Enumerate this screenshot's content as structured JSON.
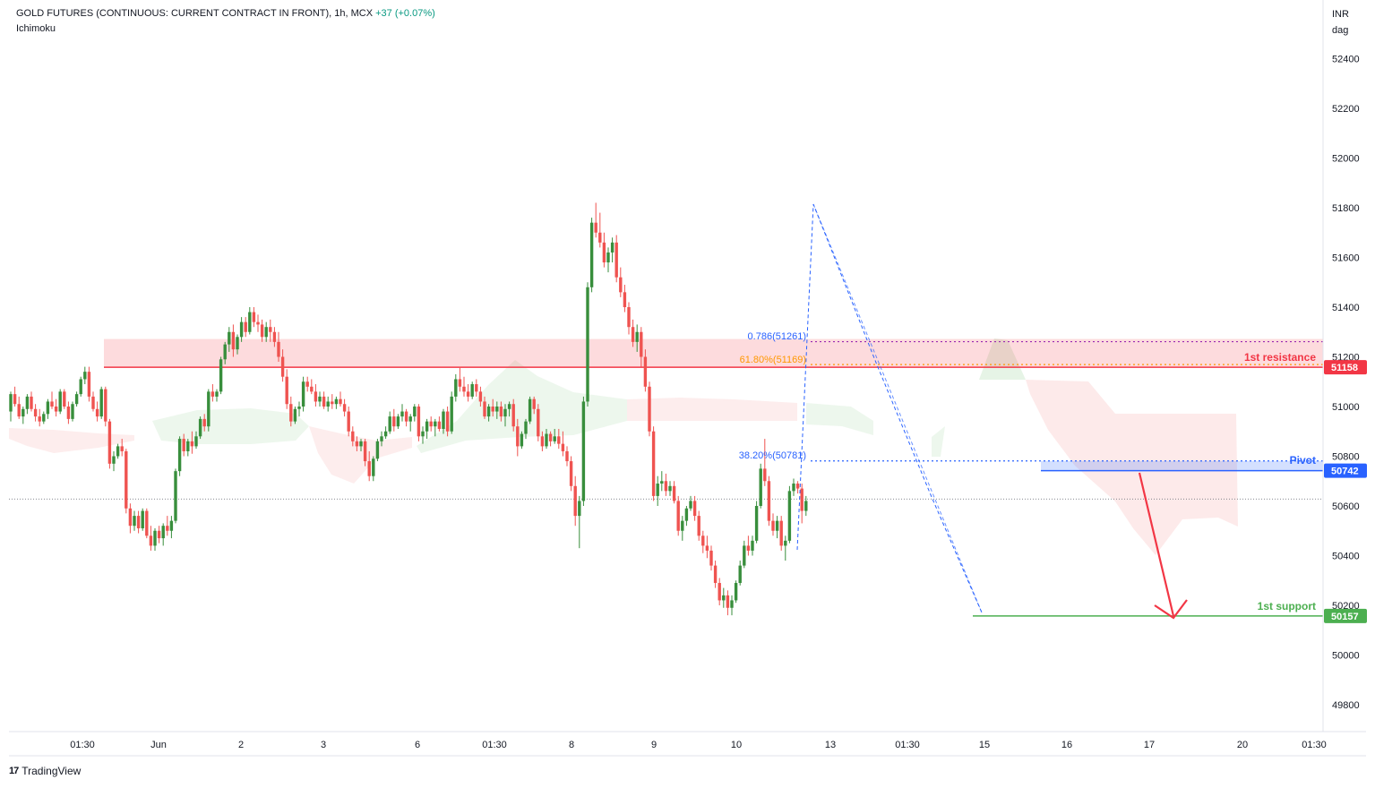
{
  "header": {
    "symbol": "GOLD FUTURES (CONTINUOUS: CURRENT CONTRACT IN FRONT), 1h, MCX",
    "change": "+37 (+0.07%)",
    "indicator": "Ichimoku"
  },
  "footer": {
    "brand": "TradingView"
  },
  "colors": {
    "up": "#388e3c",
    "down": "#ef5350",
    "support": "#4caf50",
    "resistance": "#f23645",
    "pivot": "#2962ff"
  },
  "chart_data": {
    "type": "candlestick",
    "title": "GOLD FUTURES (CONTINUOUS: CURRENT CONTRACT IN FRONT), 1h, MCX",
    "currency_label": [
      "INR",
      "dag"
    ],
    "ylim": [
      49700,
      52550
    ],
    "y_ticks": [
      52400,
      52200,
      52000,
      51800,
      51600,
      51400,
      51200,
      51000,
      50800,
      50600,
      50400,
      50200,
      50000,
      49800
    ],
    "x_ticks": [
      "01:30",
      "Jun",
      "2",
      "3",
      "6",
      "01:30",
      "8",
      "9",
      "10",
      "13",
      "01:30",
      "15",
      "16",
      "17",
      "20",
      "01:30"
    ],
    "grid": false,
    "annotations": {
      "resistance_label": "1st resistance",
      "resistance_value": "51158",
      "pivot_label": "Pivot",
      "pivot_value": "50742",
      "support_label": "1st support",
      "support_value": "50157",
      "fib_786": "0.786(51261)",
      "fib_618": "61.80%(51169)",
      "fib_382": "38.20%(50781)"
    },
    "levels": {
      "resistance": 51158,
      "resistance_zone_top": 51261,
      "pivot": 50742,
      "pivot_zone_top": 50781,
      "support": 50157,
      "last_price": 50628
    },
    "candles": [
      [
        50980,
        51060,
        50940,
        51050
      ],
      [
        51050,
        51080,
        51000,
        51010
      ],
      [
        51010,
        51040,
        50950,
        50960
      ],
      [
        50960,
        51000,
        50930,
        50990
      ],
      [
        50990,
        51050,
        50970,
        51040
      ],
      [
        51040,
        51060,
        50980,
        50990
      ],
      [
        50990,
        51010,
        50940,
        50960
      ],
      [
        50960,
        50990,
        50920,
        50940
      ],
      [
        50940,
        50980,
        50930,
        50970
      ],
      [
        50970,
        51030,
        50950,
        51020
      ],
      [
        51020,
        51060,
        50990,
        51000
      ],
      [
        51000,
        51030,
        50960,
        50980
      ],
      [
        50980,
        51070,
        50970,
        51060
      ],
      [
        51060,
        51070,
        50990,
        51000
      ],
      [
        51000,
        51020,
        50930,
        50950
      ],
      [
        50950,
        51020,
        50940,
        51010
      ],
      [
        51010,
        51060,
        51000,
        51050
      ],
      [
        51050,
        51120,
        51040,
        51110
      ],
      [
        51110,
        51160,
        51090,
        51140
      ],
      [
        51140,
        51160,
        51020,
        51040
      ],
      [
        51040,
        51060,
        50980,
        50990
      ],
      [
        50990,
        51020,
        50940,
        50960
      ],
      [
        50960,
        51080,
        50950,
        51070
      ],
      [
        51070,
        51080,
        50920,
        50940
      ],
      [
        50940,
        50950,
        50750,
        50770
      ],
      [
        50770,
        50820,
        50740,
        50800
      ],
      [
        50800,
        50850,
        50790,
        50840
      ],
      [
        50840,
        50870,
        50800,
        50820
      ],
      [
        50820,
        50830,
        50570,
        50590
      ],
      [
        50590,
        50610,
        50490,
        50520
      ],
      [
        50520,
        50580,
        50500,
        50560
      ],
      [
        50560,
        50580,
        50490,
        50510
      ],
      [
        50510,
        50590,
        50500,
        50580
      ],
      [
        50580,
        50590,
        50470,
        50480
      ],
      [
        50480,
        50520,
        50420,
        50440
      ],
      [
        50440,
        50510,
        50420,
        50500
      ],
      [
        50500,
        50520,
        50450,
        50470
      ],
      [
        50470,
        50530,
        50440,
        50520
      ],
      [
        50520,
        50560,
        50480,
        50500
      ],
      [
        50500,
        50560,
        50470,
        50540
      ],
      [
        50540,
        50750,
        50530,
        50740
      ],
      [
        50740,
        50880,
        50720,
        50870
      ],
      [
        50870,
        50890,
        50800,
        50820
      ],
      [
        50820,
        50870,
        50800,
        50860
      ],
      [
        50860,
        50900,
        50810,
        50840
      ],
      [
        50840,
        50900,
        50830,
        50880
      ],
      [
        50880,
        50960,
        50870,
        50950
      ],
      [
        50950,
        50970,
        50900,
        50920
      ],
      [
        50920,
        51070,
        50900,
        51060
      ],
      [
        51060,
        51090,
        51020,
        51040
      ],
      [
        51040,
        51070,
        51020,
        51060
      ],
      [
        51060,
        51200,
        51050,
        51190
      ],
      [
        51190,
        51260,
        51170,
        51250
      ],
      [
        51250,
        51320,
        51220,
        51300
      ],
      [
        51300,
        51330,
        51200,
        51230
      ],
      [
        51230,
        51290,
        51210,
        51280
      ],
      [
        51280,
        51360,
        51260,
        51340
      ],
      [
        51340,
        51360,
        51280,
        51300
      ],
      [
        51300,
        51400,
        51290,
        51380
      ],
      [
        51380,
        51400,
        51320,
        51340
      ],
      [
        51340,
        51370,
        51300,
        51330
      ],
      [
        51330,
        51350,
        51260,
        51280
      ],
      [
        51280,
        51340,
        51260,
        51320
      ],
      [
        51320,
        51350,
        51260,
        51300
      ],
      [
        51300,
        51320,
        51240,
        51260
      ],
      [
        51260,
        51300,
        51180,
        51200
      ],
      [
        51200,
        51230,
        51100,
        51120
      ],
      [
        51120,
        51150,
        50990,
        51010
      ],
      [
        51010,
        51040,
        50920,
        50940
      ],
      [
        50940,
        51000,
        50930,
        50990
      ],
      [
        50990,
        51020,
        50960,
        51000
      ],
      [
        51000,
        51120,
        50980,
        51100
      ],
      [
        51100,
        51120,
        51060,
        51080
      ],
      [
        51080,
        51110,
        51050,
        51060
      ],
      [
        51060,
        51090,
        51000,
        51020
      ],
      [
        51020,
        51060,
        51000,
        51040
      ],
      [
        51040,
        51060,
        50990,
        51000
      ],
      [
        51000,
        51040,
        50980,
        51020
      ],
      [
        51020,
        51050,
        50990,
        51010
      ],
      [
        51010,
        51040,
        50990,
        51030
      ],
      [
        51030,
        51060,
        51000,
        51010
      ],
      [
        51010,
        51030,
        50960,
        50980
      ],
      [
        50980,
        51000,
        50880,
        50900
      ],
      [
        50900,
        50920,
        50840,
        50860
      ],
      [
        50860,
        50880,
        50820,
        50840
      ],
      [
        50840,
        50870,
        50820,
        50860
      ],
      [
        50860,
        50870,
        50760,
        50780
      ],
      [
        50780,
        50820,
        50700,
        50720
      ],
      [
        50720,
        50800,
        50700,
        50790
      ],
      [
        50790,
        50870,
        50780,
        50860
      ],
      [
        50860,
        50900,
        50840,
        50880
      ],
      [
        50880,
        50920,
        50870,
        50900
      ],
      [
        50900,
        50980,
        50890,
        50960
      ],
      [
        50960,
        50990,
        50900,
        50920
      ],
      [
        50920,
        50970,
        50910,
        50960
      ],
      [
        50960,
        51010,
        50940,
        50980
      ],
      [
        50980,
        50990,
        50920,
        50940
      ],
      [
        50940,
        50970,
        50900,
        50960
      ],
      [
        50960,
        51010,
        50940,
        51000
      ],
      [
        51000,
        51010,
        50860,
        50880
      ],
      [
        50880,
        50920,
        50850,
        50900
      ],
      [
        50900,
        50950,
        50870,
        50940
      ],
      [
        50940,
        50960,
        50900,
        50920
      ],
      [
        50920,
        50950,
        50880,
        50940
      ],
      [
        50940,
        50960,
        50900,
        50910
      ],
      [
        50910,
        50990,
        50890,
        50980
      ],
      [
        50980,
        51000,
        50880,
        50900
      ],
      [
        50900,
        51060,
        50890,
        51040
      ],
      [
        51040,
        51130,
        51020,
        51110
      ],
      [
        51110,
        51160,
        51060,
        51080
      ],
      [
        51080,
        51120,
        51040,
        51060
      ],
      [
        51060,
        51090,
        51020,
        51040
      ],
      [
        51040,
        51100,
        51030,
        51090
      ],
      [
        51090,
        51110,
        51040,
        51060
      ],
      [
        51060,
        51080,
        51000,
        51020
      ],
      [
        51020,
        51040,
        50950,
        50960
      ],
      [
        50960,
        51010,
        50940,
        51000
      ],
      [
        51000,
        51030,
        50960,
        50980
      ],
      [
        50980,
        51020,
        50950,
        51000
      ],
      [
        51000,
        51020,
        50940,
        50960
      ],
      [
        50960,
        51010,
        50920,
        50990
      ],
      [
        50990,
        51020,
        50960,
        51010
      ],
      [
        51010,
        51030,
        50900,
        50920
      ],
      [
        50920,
        50950,
        50800,
        50840
      ],
      [
        50840,
        50900,
        50830,
        50890
      ],
      [
        50890,
        50950,
        50870,
        50940
      ],
      [
        50940,
        51040,
        50930,
        51030
      ],
      [
        51030,
        51040,
        50970,
        50990
      ],
      [
        50990,
        51010,
        50860,
        50880
      ],
      [
        50880,
        50900,
        50820,
        50840
      ],
      [
        50840,
        50910,
        50830,
        50890
      ],
      [
        50890,
        50900,
        50840,
        50860
      ],
      [
        50860,
        50910,
        50850,
        50880
      ],
      [
        50880,
        50910,
        50830,
        50850
      ],
      [
        50850,
        50900,
        50800,
        50820
      ],
      [
        50820,
        50840,
        50760,
        50780
      ],
      [
        50780,
        50800,
        50660,
        50680
      ],
      [
        50680,
        50720,
        50520,
        50560
      ],
      [
        50560,
        50640,
        50430,
        50620
      ],
      [
        50620,
        51040,
        50600,
        51020
      ],
      [
        51020,
        51500,
        51000,
        51480
      ],
      [
        51480,
        51760,
        51460,
        51740
      ],
      [
        51740,
        51820,
        51680,
        51700
      ],
      [
        51700,
        51780,
        51640,
        51660
      ],
      [
        51660,
        51700,
        51560,
        51580
      ],
      [
        51580,
        51640,
        51540,
        51620
      ],
      [
        51620,
        51680,
        51580,
        51660
      ],
      [
        51660,
        51690,
        51500,
        51520
      ],
      [
        51520,
        51560,
        51440,
        51460
      ],
      [
        51460,
        51490,
        51380,
        51400
      ],
      [
        51400,
        51420,
        51290,
        51320
      ],
      [
        51320,
        51350,
        51240,
        51260
      ],
      [
        51260,
        51330,
        51220,
        51300
      ],
      [
        51300,
        51320,
        51160,
        51200
      ],
      [
        51200,
        51230,
        51060,
        51080
      ],
      [
        51080,
        51100,
        50880,
        50900
      ],
      [
        50900,
        50920,
        50620,
        50640
      ],
      [
        50640,
        50720,
        50600,
        50690
      ],
      [
        50690,
        50740,
        50660,
        50700
      ],
      [
        50700,
        50730,
        50640,
        50660
      ],
      [
        50660,
        50700,
        50640,
        50680
      ],
      [
        50680,
        50700,
        50610,
        50620
      ],
      [
        50620,
        50640,
        50480,
        50500
      ],
      [
        50500,
        50560,
        50460,
        50540
      ],
      [
        50540,
        50600,
        50520,
        50590
      ],
      [
        50590,
        50640,
        50580,
        50620
      ],
      [
        50620,
        50640,
        50540,
        50560
      ],
      [
        50560,
        50580,
        50460,
        50480
      ],
      [
        50480,
        50500,
        50410,
        50440
      ],
      [
        50440,
        50480,
        50390,
        50420
      ],
      [
        50420,
        50440,
        50340,
        50360
      ],
      [
        50360,
        50380,
        50270,
        50290
      ],
      [
        50290,
        50310,
        50200,
        50220
      ],
      [
        50220,
        50270,
        50190,
        50240
      ],
      [
        50240,
        50260,
        50160,
        50190
      ],
      [
        50190,
        50240,
        50160,
        50220
      ],
      [
        50220,
        50300,
        50210,
        50290
      ],
      [
        50290,
        50380,
        50280,
        50360
      ],
      [
        50360,
        50460,
        50350,
        50440
      ],
      [
        50440,
        50480,
        50400,
        50420
      ],
      [
        50420,
        50480,
        50400,
        50460
      ],
      [
        50460,
        50620,
        50450,
        50600
      ],
      [
        50600,
        50770,
        50590,
        50750
      ],
      [
        50750,
        50870,
        50680,
        50700
      ],
      [
        50700,
        50720,
        50520,
        50540
      ],
      [
        50540,
        50570,
        50480,
        50500
      ],
      [
        50500,
        50560,
        50470,
        50540
      ],
      [
        50540,
        50560,
        50420,
        50440
      ],
      [
        50440,
        50480,
        50380,
        50460
      ],
      [
        50460,
        50680,
        50450,
        50660
      ],
      [
        50660,
        50710,
        50640,
        50690
      ],
      [
        50690,
        50700,
        50650,
        50670
      ],
      [
        50670,
        50690,
        50530,
        50580
      ],
      [
        50580,
        50640,
        50560,
        50620
      ]
    ]
  }
}
